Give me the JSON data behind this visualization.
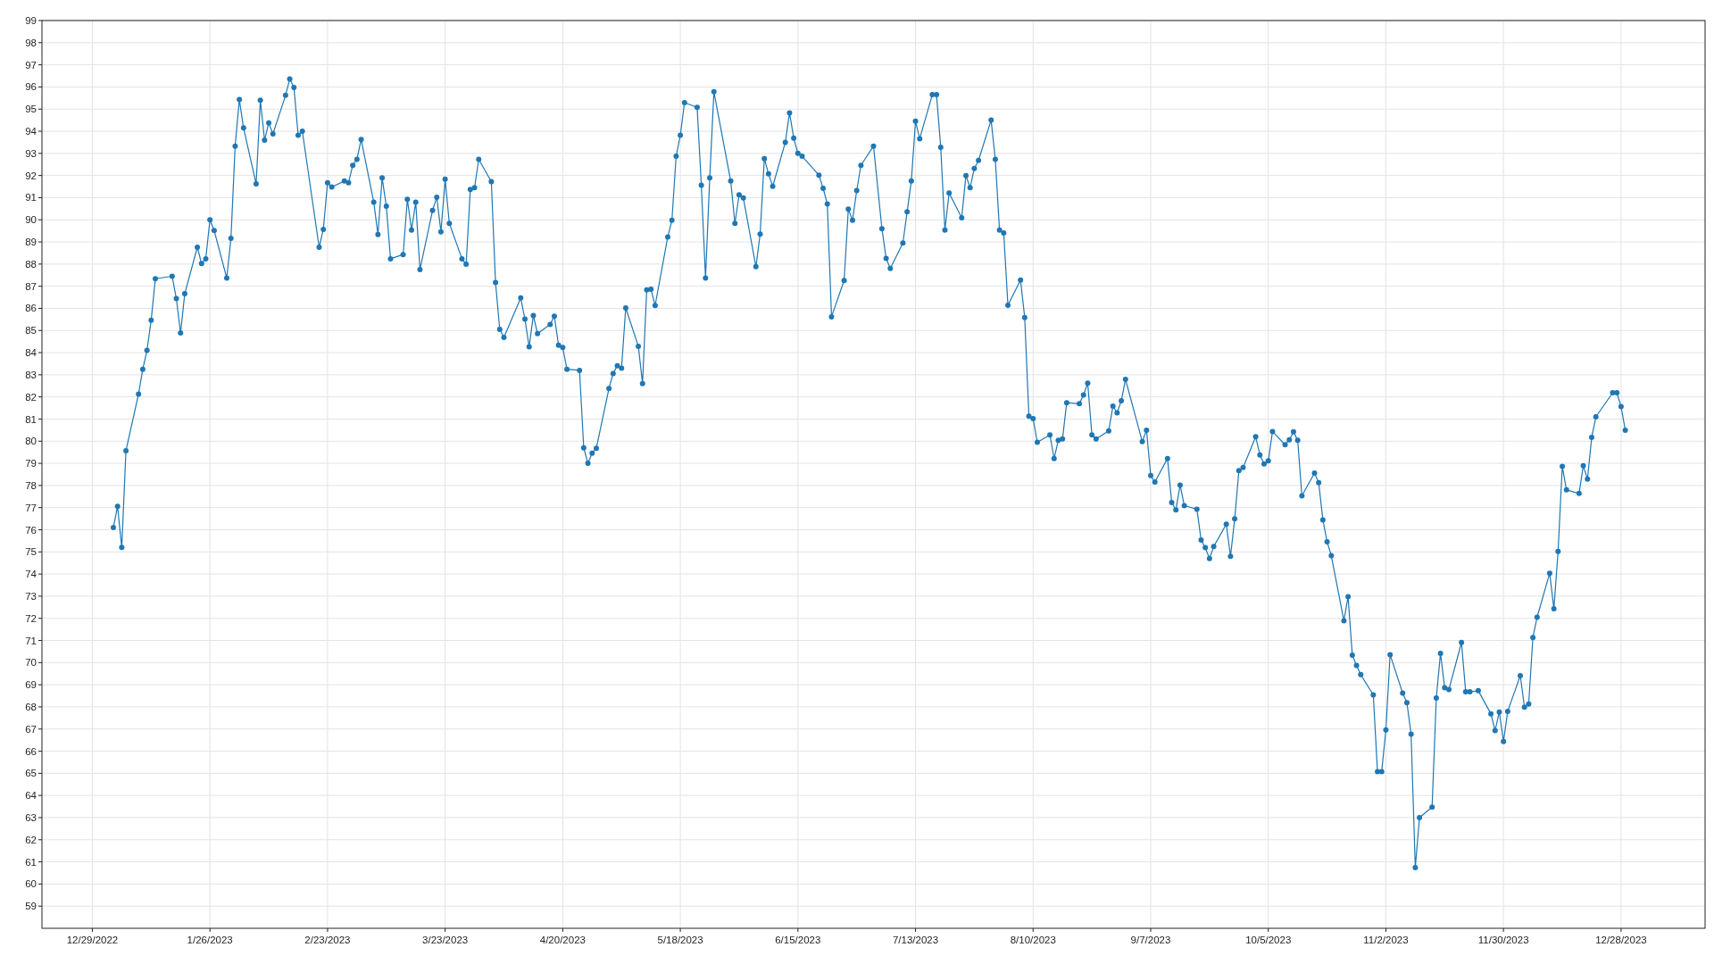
{
  "chart_data": {
    "type": "line",
    "grid": true,
    "marker": "circle",
    "line_style": "solid",
    "xlim": [
      "2022-12-17",
      "2024-01-17"
    ],
    "ylim": [
      58,
      99
    ],
    "xticks": [
      {
        "value": "2022-12-29",
        "label": "12/29/2022"
      },
      {
        "value": "2023-01-26",
        "label": "1/26/2023"
      },
      {
        "value": "2023-02-23",
        "label": "2/23/2023"
      },
      {
        "value": "2023-03-23",
        "label": "3/23/2023"
      },
      {
        "value": "2023-04-20",
        "label": "4/20/2023"
      },
      {
        "value": "2023-05-18",
        "label": "5/18/2023"
      },
      {
        "value": "2023-06-15",
        "label": "6/15/2023"
      },
      {
        "value": "2023-07-13",
        "label": "7/13/2023"
      },
      {
        "value": "2023-08-10",
        "label": "8/10/2023"
      },
      {
        "value": "2023-09-07",
        "label": "9/7/2023"
      },
      {
        "value": "2023-10-05",
        "label": "10/5/2023"
      },
      {
        "value": "2023-11-02",
        "label": "11/2/2023"
      },
      {
        "value": "2023-11-30",
        "label": "11/30/2023"
      },
      {
        "value": "2023-12-28",
        "label": "12/28/2023"
      }
    ],
    "yticks": [
      59,
      60,
      61,
      62,
      63,
      64,
      65,
      66,
      67,
      68,
      69,
      70,
      71,
      72,
      73,
      74,
      75,
      76,
      77,
      78,
      79,
      80,
      81,
      82,
      83,
      84,
      85,
      86,
      87,
      88,
      89,
      90,
      91,
      92,
      93,
      94,
      95,
      96,
      97,
      98,
      99
    ],
    "x": [
      "2023-01-03",
      "2023-01-04",
      "2023-01-05",
      "2023-01-06",
      "2023-01-09",
      "2023-01-10",
      "2023-01-11",
      "2023-01-12",
      "2023-01-13",
      "2023-01-17",
      "2023-01-18",
      "2023-01-19",
      "2023-01-20",
      "2023-01-23",
      "2023-01-24",
      "2023-01-25",
      "2023-01-26",
      "2023-01-27",
      "2023-01-30",
      "2023-01-31",
      "2023-02-01",
      "2023-02-02",
      "2023-02-03",
      "2023-02-06",
      "2023-02-07",
      "2023-02-08",
      "2023-02-09",
      "2023-02-10",
      "2023-02-13",
      "2023-02-14",
      "2023-02-15",
      "2023-02-16",
      "2023-02-17",
      "2023-02-21",
      "2023-02-22",
      "2023-02-23",
      "2023-02-24",
      "2023-02-27",
      "2023-02-28",
      "2023-03-01",
      "2023-03-02",
      "2023-03-03",
      "2023-03-06",
      "2023-03-07",
      "2023-03-08",
      "2023-03-09",
      "2023-03-10",
      "2023-03-13",
      "2023-03-14",
      "2023-03-15",
      "2023-03-16",
      "2023-03-17",
      "2023-03-20",
      "2023-03-21",
      "2023-03-22",
      "2023-03-23",
      "2023-03-24",
      "2023-03-27",
      "2023-03-28",
      "2023-03-29",
      "2023-03-30",
      "2023-03-31",
      "2023-04-03",
      "2023-04-04",
      "2023-04-05",
      "2023-04-06",
      "2023-04-10",
      "2023-04-11",
      "2023-04-12",
      "2023-04-13",
      "2023-04-14",
      "2023-04-17",
      "2023-04-18",
      "2023-04-19",
      "2023-04-20",
      "2023-04-21",
      "2023-04-24",
      "2023-04-25",
      "2023-04-26",
      "2023-04-27",
      "2023-04-28",
      "2023-05-01",
      "2023-05-02",
      "2023-05-03",
      "2023-05-04",
      "2023-05-05",
      "2023-05-08",
      "2023-05-09",
      "2023-05-10",
      "2023-05-11",
      "2023-05-12",
      "2023-05-15",
      "2023-05-16",
      "2023-05-17",
      "2023-05-18",
      "2023-05-19",
      "2023-05-22",
      "2023-05-23",
      "2023-05-24",
      "2023-05-25",
      "2023-05-26",
      "2023-05-30",
      "2023-05-31",
      "2023-06-01",
      "2023-06-02",
      "2023-06-05",
      "2023-06-06",
      "2023-06-07",
      "2023-06-08",
      "2023-06-09",
      "2023-06-12",
      "2023-06-13",
      "2023-06-14",
      "2023-06-15",
      "2023-06-16",
      "2023-06-20",
      "2023-06-21",
      "2023-06-22",
      "2023-06-23",
      "2023-06-26",
      "2023-06-27",
      "2023-06-28",
      "2023-06-29",
      "2023-06-30",
      "2023-07-03",
      "2023-07-05",
      "2023-07-06",
      "2023-07-07",
      "2023-07-10",
      "2023-07-11",
      "2023-07-12",
      "2023-07-13",
      "2023-07-14",
      "2023-07-17",
      "2023-07-18",
      "2023-07-19",
      "2023-07-20",
      "2023-07-21",
      "2023-07-24",
      "2023-07-25",
      "2023-07-26",
      "2023-07-27",
      "2023-07-28",
      "2023-07-31",
      "2023-08-01",
      "2023-08-02",
      "2023-08-03",
      "2023-08-04",
      "2023-08-07",
      "2023-08-08",
      "2023-08-09",
      "2023-08-10",
      "2023-08-11",
      "2023-08-14",
      "2023-08-15",
      "2023-08-16",
      "2023-08-17",
      "2023-08-18",
      "2023-08-21",
      "2023-08-22",
      "2023-08-23",
      "2023-08-24",
      "2023-08-25",
      "2023-08-28",
      "2023-08-29",
      "2023-08-30",
      "2023-08-31",
      "2023-09-01",
      "2023-09-05",
      "2023-09-06",
      "2023-09-07",
      "2023-09-08",
      "2023-09-11",
      "2023-09-12",
      "2023-09-13",
      "2023-09-14",
      "2023-09-15",
      "2023-09-18",
      "2023-09-19",
      "2023-09-20",
      "2023-09-21",
      "2023-09-22",
      "2023-09-25",
      "2023-09-26",
      "2023-09-27",
      "2023-09-28",
      "2023-09-29",
      "2023-10-02",
      "2023-10-03",
      "2023-10-04",
      "2023-10-05",
      "2023-10-06",
      "2023-10-09",
      "2023-10-10",
      "2023-10-11",
      "2023-10-12",
      "2023-10-13",
      "2023-10-16",
      "2023-10-17",
      "2023-10-18",
      "2023-10-19",
      "2023-10-20",
      "2023-10-23",
      "2023-10-24",
      "2023-10-25",
      "2023-10-26",
      "2023-10-27",
      "2023-10-30",
      "2023-10-31",
      "2023-11-01",
      "2023-11-02",
      "2023-11-03",
      "2023-11-06",
      "2023-11-07",
      "2023-11-08",
      "2023-11-09",
      "2023-11-10",
      "2023-11-13",
      "2023-11-14",
      "2023-11-15",
      "2023-11-16",
      "2023-11-17",
      "2023-11-20",
      "2023-11-21",
      "2023-11-22",
      "2023-11-24",
      "2023-11-27",
      "2023-11-28",
      "2023-11-29",
      "2023-11-30",
      "2023-12-01",
      "2023-12-04",
      "2023-12-05",
      "2023-12-06",
      "2023-12-07",
      "2023-12-08",
      "2023-12-11",
      "2023-12-12",
      "2023-12-13",
      "2023-12-14",
      "2023-12-15",
      "2023-12-18",
      "2023-12-19",
      "2023-12-20",
      "2023-12-21",
      "2023-12-22",
      "2023-12-26",
      "2023-12-27",
      "2023-12-28",
      "2023-12-29"
    ],
    "series": [
      {
        "color": "#1f77b4",
        "values": [
          76.1,
          77.06,
          75.2,
          79.57,
          82.13,
          83.25,
          84.1,
          85.46,
          87.34,
          87.45,
          86.44,
          84.89,
          86.66,
          88.76,
          88.02,
          88.24,
          90.0,
          89.52,
          87.37,
          89.16,
          93.33,
          95.43,
          94.15,
          91.62,
          95.4,
          93.6,
          94.37,
          93.88,
          95.62,
          96.36,
          95.98,
          93.82,
          94.0,
          88.76,
          89.57,
          91.67,
          91.48,
          91.75,
          91.67,
          92.46,
          92.73,
          93.63,
          90.8,
          89.33,
          91.89,
          90.61,
          88.24,
          88.43,
          90.93,
          89.54,
          90.8,
          87.75,
          90.42,
          91.02,
          89.46,
          91.83,
          89.84,
          88.24,
          87.99,
          91.37,
          91.45,
          92.73,
          91.72,
          87.17,
          85.05,
          84.69,
          86.47,
          85.51,
          84.26,
          85.68,
          84.86,
          85.27,
          85.65,
          84.34,
          84.23,
          83.25,
          83.2,
          79.7,
          79.0,
          79.46,
          79.68,
          82.38,
          83.06,
          83.41,
          83.3,
          86.02,
          84.29,
          82.6,
          86.84,
          86.87,
          86.13,
          89.22,
          89.98,
          92.87,
          93.82,
          95.29,
          95.08,
          91.56,
          87.37,
          91.89,
          95.78,
          91.75,
          89.84,
          91.13,
          90.99,
          87.88,
          89.35,
          92.76,
          92.08,
          91.51,
          93.5,
          94.83,
          93.69,
          93.0,
          92.87,
          92.02,
          91.42,
          90.72,
          85.62,
          87.26,
          90.48,
          89.98,
          91.32,
          92.46,
          93.33,
          89.6,
          88.26,
          87.8,
          88.95,
          90.36,
          91.75,
          94.45,
          93.66,
          95.65,
          95.65,
          93.28,
          89.54,
          91.21,
          90.09,
          92.0,
          91.45,
          92.32,
          92.68,
          94.5,
          92.73,
          89.54,
          89.41,
          86.14,
          87.28,
          85.59,
          81.13,
          81.02,
          79.95,
          80.28,
          79.22,
          80.04,
          80.1,
          81.74,
          81.69,
          82.09,
          82.62,
          80.28,
          80.1,
          80.47,
          81.58,
          81.28,
          81.83,
          82.79,
          79.98,
          80.5,
          78.45,
          78.16,
          79.22,
          77.23,
          76.9,
          78.02,
          77.09,
          76.93,
          75.54,
          75.19,
          74.7,
          75.24,
          76.25,
          74.8,
          76.49,
          78.67,
          78.81,
          80.2,
          79.38,
          78.97,
          79.11,
          80.44,
          79.84,
          80.06,
          80.42,
          80.04,
          77.53,
          78.56,
          78.13,
          76.44,
          75.46,
          74.83,
          71.89,
          72.98,
          70.34,
          69.87,
          69.46,
          68.54,
          65.08,
          65.08,
          66.96,
          70.36,
          68.62,
          68.19,
          66.77,
          60.74,
          63.0,
          63.47,
          68.4,
          70.42,
          68.86,
          68.78,
          70.91,
          68.68,
          68.68,
          68.73,
          67.69,
          66.93,
          67.77,
          66.44,
          67.8,
          69.41,
          67.99,
          68.13,
          71.13,
          72.05,
          74.04,
          72.43,
          75.02,
          78.86,
          77.8,
          77.64,
          78.89,
          78.29,
          80.17,
          81.1,
          82.19,
          82.19,
          81.56,
          80.5
        ]
      }
    ]
  }
}
